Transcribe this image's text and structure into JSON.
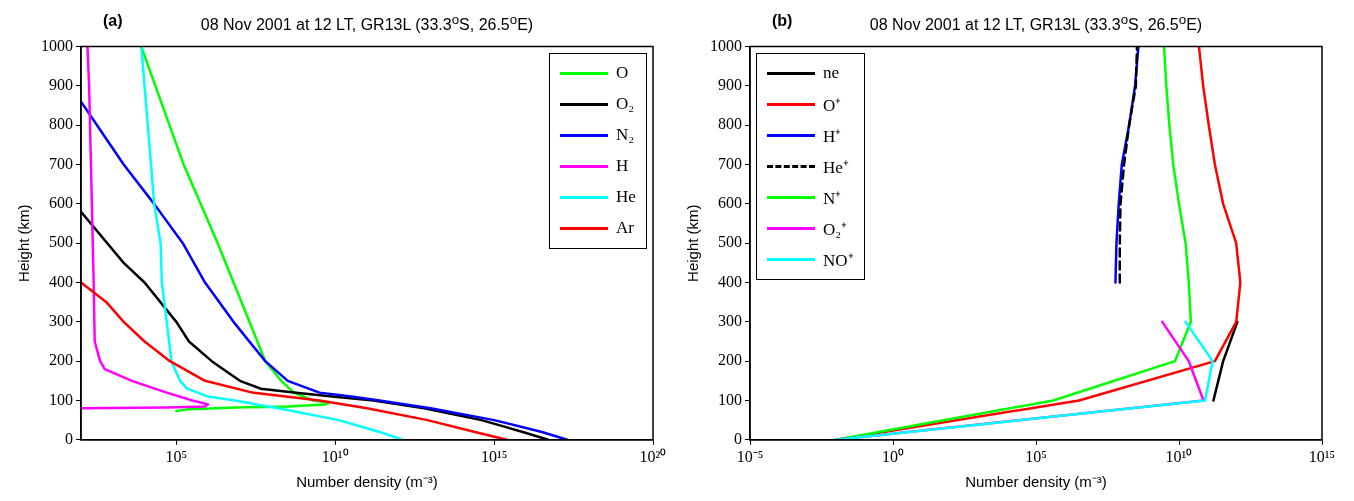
{
  "chart_data": [
    {
      "type": "line",
      "title": "08 Nov 2001 at 12 LT, GR13L (33.3$^{o}$S, 26.5$^{o}$E)",
      "annotations": [
        "(a)"
      ],
      "xlabel": "Number density (m⁻³)",
      "ylabel": "Height (km)",
      "log": "x",
      "legend": "top right",
      "xlim": [
        100,
        1e+20
      ],
      "xticks": [
        {
          "value": 100000.0,
          "label": "10⁵"
        },
        {
          "value": 10000000000.0,
          "label": "10¹⁰"
        },
        {
          "value": 1000000000000000.0,
          "label": "10¹⁵"
        },
        {
          "value": 1e+20,
          "label": "10²⁰"
        }
      ],
      "ylim": [
        0,
        1000
      ],
      "yticks": [
        0,
        100,
        200,
        300,
        400,
        500,
        600,
        700,
        800,
        900,
        1000
      ],
      "series": [
        {
          "name": "O",
          "color": "#00ff00",
          "x": [
            7900.0,
            170000.0,
            2000000.0,
            20000000.0,
            63000000.0,
            200000000.0,
            500000000.0,
            2000000000.0,
            6300000000.0,
            5000000000.0,
            320000000.0,
            7900000.0,
            250000.0,
            100000.0
          ],
          "values": [
            1000,
            700,
            500,
            300,
            200,
            150,
            120,
            100,
            95,
            90,
            85,
            82,
            78,
            73
          ]
        },
        {
          "name": "O₂",
          "color": "#000000",
          "x": [
            100.0,
            2200.0,
            10000.0,
            100000.0,
            250000.0,
            1300000.0,
            10000000.0,
            45000000.0,
            500000000.0,
            8000000000.0,
            160000000000.0,
            6300000000000.0,
            400000000000000.0,
            8000000000000000.0,
            5e+16
          ],
          "values": [
            580,
            450,
            400,
            300,
            250,
            200,
            150,
            130,
            120,
            110,
            100,
            80,
            50,
            20,
            0
          ]
        },
        {
          "name": "N₂",
          "color": "#0000ff",
          "x": [
            100.0,
            320.0,
            2200.0,
            20000.0,
            160000.0,
            800000.0,
            6300000.0,
            63000000.0,
            320000000.0,
            3200000000.0,
            32000000000.0,
            250000000000.0,
            10000000000000.0,
            1000000000000000.0,
            3.2e+16,
            2e+17
          ],
          "values": [
            860,
            800,
            700,
            600,
            500,
            400,
            300,
            200,
            150,
            120,
            110,
            100,
            80,
            50,
            20,
            0
          ]
        },
        {
          "name": "H",
          "color": "#ff00ff",
          "x": [
            160,
            180,
            220,
            250,
            270,
            400,
            560,
            4000.0,
            50000.0,
            320000.0,
            1000000.0,
            800000.0,
            50000.0,
            100
          ],
          "values": [
            1000,
            900,
            600,
            400,
            250,
            200,
            180,
            150,
            120,
            100,
            90,
            85,
            82,
            80
          ]
        },
        {
          "name": "He",
          "color": "#00ffff",
          "x": [
            7900.0,
            10000.0,
            16000.0,
            20000.0,
            32000.0,
            35000.0,
            50000.0,
            70000.0,
            130000.0,
            220000.0,
            1000000.0,
            7000000.0,
            160000000.0,
            13000000000.0,
            250000000000.0,
            1300000000000.0
          ],
          "values": [
            1000,
            900,
            700,
            600,
            500,
            400,
            300,
            200,
            150,
            130,
            110,
            100,
            80,
            50,
            20,
            0
          ]
        },
        {
          "name": "Ar",
          "color": "#ff0000",
          "x": [
            100.0,
            630.0,
            2200.0,
            10000.0,
            63000.0,
            800000.0,
            25000000.0,
            3200000000.0,
            100000000000.0,
            8000000000000.0,
            250000000000000.0,
            2500000000000000.0
          ],
          "values": [
            400,
            350,
            300,
            250,
            200,
            150,
            120,
            100,
            80,
            50,
            20,
            0
          ]
        }
      ]
    },
    {
      "type": "line",
      "title": "08 Nov 2001 at 12 LT, GR13L (33.3$^{o}$S, 26.5$^{o}$E)",
      "annotations": [
        "(b)"
      ],
      "xlabel": "Number density (m⁻³)",
      "ylabel": "Height (km)",
      "log": "x",
      "legend": "top left",
      "xlim": [
        1e-05,
        1000000000000000.0
      ],
      "xticks": [
        {
          "value": 1e-05,
          "label": "10⁻⁵"
        },
        {
          "value": 1,
          "label": "10⁰"
        },
        {
          "value": 100000.0,
          "label": "10⁵"
        },
        {
          "value": 10000000000.0,
          "label": "10¹⁰"
        },
        {
          "value": 1000000000000000.0,
          "label": "10¹⁵"
        }
      ],
      "ylim": [
        0,
        1000
      ],
      "yticks": [
        0,
        100,
        200,
        300,
        400,
        500,
        600,
        700,
        800,
        900,
        1000
      ],
      "series": [
        {
          "name": "ne",
          "color": "#000000",
          "x": [
            160000000000.0,
            350000000000.0,
            1100000000000.0
          ],
          "values": [
            100,
            200,
            300
          ]
        },
        {
          "name": "O⁺",
          "color": "#ff0000",
          "x": [
            0.01,
            3200000.0,
            180000000000.0,
            1000000000000.0,
            1400000000000.0,
            1000000000000.0,
            350000000000.0,
            180000000000.0,
            110000000000.0,
            70000000000.0,
            50000000000.0
          ],
          "values": [
            0,
            100,
            200,
            300,
            400,
            500,
            600,
            700,
            800,
            900,
            1000
          ]
        },
        {
          "name": "H⁺",
          "color": "#0000ff",
          "x": [
            60000000.0,
            65000000.0,
            78000000.0,
            100000000.0,
            180000000.0,
            290000000.0,
            380000000.0
          ],
          "values": [
            400,
            500,
            600,
            700,
            800,
            900,
            1000
          ]
        },
        {
          "name": "He⁺",
          "color": "#000000",
          "line_style": "dashed",
          "x": [
            85000000.0,
            85000000.0,
            90000000.0,
            120000000.0,
            180000000.0,
            310000000.0,
            340000000.0
          ],
          "values": [
            400,
            500,
            600,
            700,
            800,
            900,
            1000
          ]
        },
        {
          "name": "N⁺",
          "color": "#00ff00",
          "x": [
            0.01,
            400000.0,
            7200000000.0,
            26000000000.0,
            22000000000.0,
            17000000000.0,
            10000000000.0,
            6300000000.0,
            4600000000.0,
            3600000000.0,
            3000000000.0
          ],
          "values": [
            0,
            100,
            200,
            300,
            400,
            500,
            600,
            700,
            800,
            900,
            1000
          ]
        },
        {
          "name": "O₂⁺",
          "color": "#ff00ff",
          "x": [
            0.01,
            72000000000.0,
            22000000000.0,
            2600000000.0
          ],
          "values": [
            0,
            100,
            200,
            300
          ]
        },
        {
          "name": "NO⁺",
          "color": "#00ffff",
          "x": [
            0.01,
            81000000000.0,
            150000000000.0,
            17000000000.0
          ],
          "values": [
            0,
            100,
            200,
            300
          ]
        }
      ]
    }
  ]
}
